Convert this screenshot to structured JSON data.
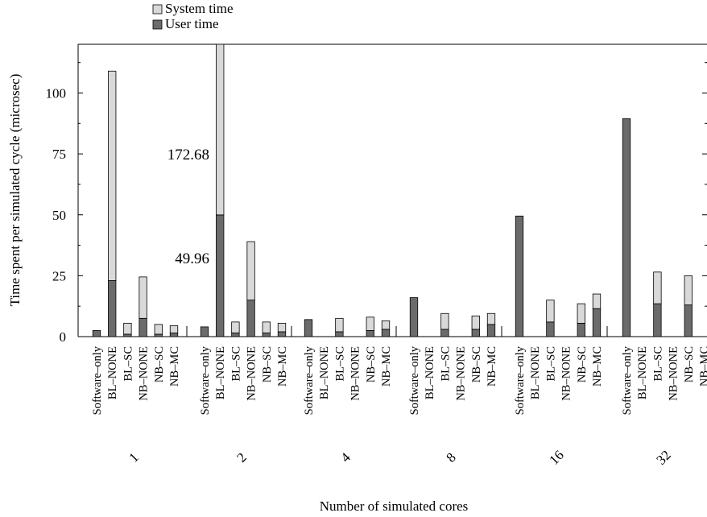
{
  "chart_data": {
    "type": "bar",
    "stacked": true,
    "xlabel": "Number of simulated cores",
    "ylabel": "Time spent per simulated cycle (microsec)",
    "ylim": [
      0,
      120
    ],
    "yticks": [
      0,
      25,
      50,
      75,
      100
    ],
    "grid": false,
    "legend": {
      "placement": "top-left",
      "entries": [
        "System time",
        "User time"
      ]
    },
    "colors": {
      "System time": "#d9d9d9",
      "User time": "#6b6b6b"
    },
    "group_labels": [
      "1",
      "2",
      "4",
      "8",
      "16",
      "32"
    ],
    "bar_labels": [
      "Software-only",
      "BL-NONE",
      "BL-SC",
      "NB-NONE",
      "NB-SC",
      "NB-MC"
    ],
    "groups": [
      {
        "label": "1",
        "bars": [
          {
            "name": "Software-only",
            "user": 2.5,
            "system": 0
          },
          {
            "name": "BL-NONE",
            "user": 23,
            "system": 86
          },
          {
            "name": "BL-SC",
            "user": 1,
            "system": 4.5
          },
          {
            "name": "NB-NONE",
            "user": 7.5,
            "system": 17
          },
          {
            "name": "NB-SC",
            "user": 1,
            "system": 4
          },
          {
            "name": "NB-MC",
            "user": 1.5,
            "system": 3
          }
        ]
      },
      {
        "label": "2",
        "bars": [
          {
            "name": "Software-only",
            "user": 4,
            "system": 0
          },
          {
            "name": "BL-NONE",
            "user": 49.96,
            "system": 122.72
          },
          {
            "name": "BL-SC",
            "user": 1.5,
            "system": 4.5
          },
          {
            "name": "NB-NONE",
            "user": 15,
            "system": 24
          },
          {
            "name": "NB-SC",
            "user": 1.5,
            "system": 4.5
          },
          {
            "name": "NB-MC",
            "user": 2,
            "system": 3.5
          }
        ]
      },
      {
        "label": "4",
        "bars": [
          {
            "name": "Software-only",
            "user": 7,
            "system": 0
          },
          {
            "name": "BL-NONE",
            "user": null,
            "system": null
          },
          {
            "name": "BL-SC",
            "user": 2,
            "system": 5.5
          },
          {
            "name": "NB-NONE",
            "user": null,
            "system": null
          },
          {
            "name": "NB-SC",
            "user": 2.5,
            "system": 5.5
          },
          {
            "name": "NB-MC",
            "user": 3,
            "system": 3.5
          }
        ]
      },
      {
        "label": "8",
        "bars": [
          {
            "name": "Software-only",
            "user": 16,
            "system": 0
          },
          {
            "name": "BL-NONE",
            "user": null,
            "system": null
          },
          {
            "name": "BL-SC",
            "user": 3,
            "system": 6.5
          },
          {
            "name": "NB-NONE",
            "user": null,
            "system": null
          },
          {
            "name": "NB-SC",
            "user": 3,
            "system": 5.5
          },
          {
            "name": "NB-MC",
            "user": 5,
            "system": 4.5
          }
        ]
      },
      {
        "label": "16",
        "bars": [
          {
            "name": "Software-only",
            "user": 49.5,
            "system": 0
          },
          {
            "name": "BL-NONE",
            "user": null,
            "system": null
          },
          {
            "name": "BL-SC",
            "user": 6,
            "system": 9
          },
          {
            "name": "NB-NONE",
            "user": null,
            "system": null
          },
          {
            "name": "NB-SC",
            "user": 5.5,
            "system": 8
          },
          {
            "name": "NB-MC",
            "user": 11.5,
            "system": 6
          }
        ]
      },
      {
        "label": "32",
        "bars": [
          {
            "name": "Software-only",
            "user": 89.5,
            "system": 0
          },
          {
            "name": "BL-NONE",
            "user": null,
            "system": null
          },
          {
            "name": "BL-SC",
            "user": 13.5,
            "system": 13
          },
          {
            "name": "NB-NONE",
            "user": null,
            "system": null
          },
          {
            "name": "NB-SC",
            "user": 13,
            "system": 12
          },
          {
            "name": "NB-MC",
            "user": null,
            "system": null
          }
        ]
      }
    ],
    "annotations": [
      "172.68",
      "49.96"
    ]
  }
}
